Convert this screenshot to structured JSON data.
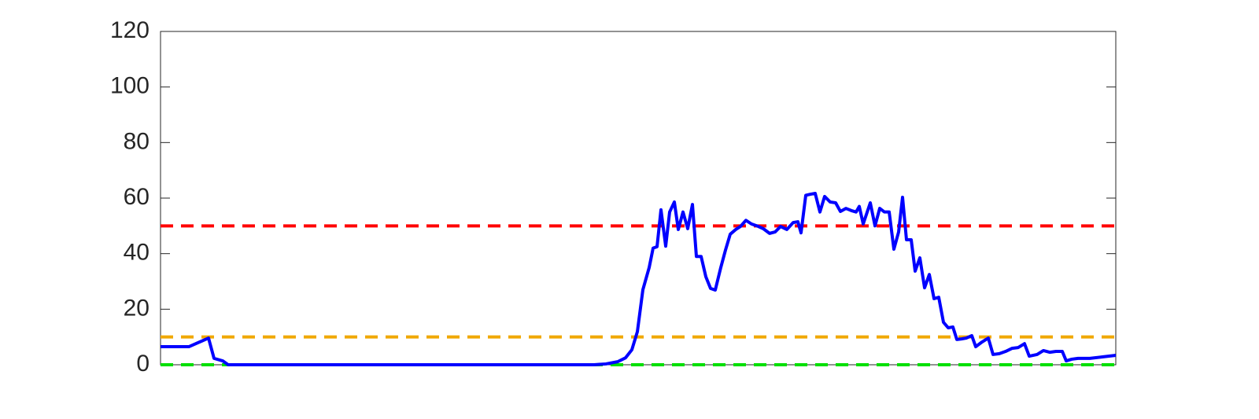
{
  "chart_data": {
    "type": "line",
    "x": [
      0,
      36,
      61,
      68,
      79,
      86,
      551,
      566,
      581,
      591,
      599,
      606,
      613,
      621,
      626,
      631,
      636,
      642,
      647,
      653,
      658,
      664,
      670,
      676,
      681,
      687,
      693,
      699,
      705,
      712,
      718,
      724,
      731,
      737,
      744,
      751,
      758,
      766,
      774,
      781,
      788,
      796,
      804,
      810,
      814,
      820,
      826,
      832,
      838,
      844,
      851,
      858,
      864,
      871,
      878,
      884,
      888,
      893,
      902,
      908,
      914,
      920,
      926,
      932,
      938,
      943,
      948,
      954,
      959,
      965,
      971,
      977,
      983,
      989,
      995,
      1001,
      1007,
      1012,
      1018,
      1024,
      1031,
      1036,
      1044,
      1052,
      1058,
      1066,
      1074,
      1082,
      1090,
      1098,
      1104,
      1114,
      1122,
      1130,
      1138,
      1146,
      1151,
      1158,
      1166,
      1181,
      1196,
      1214
    ],
    "series": [
      {
        "color": "#0000ff",
        "values": [
          6.5,
          6.5,
          9.6,
          2.3,
          1.4,
          0,
          0,
          0.3,
          1.1,
          2.5,
          5.4,
          11.9,
          27,
          35,
          42,
          42.5,
          55.8,
          42.7,
          55,
          58.6,
          48.7,
          55,
          49,
          57.7,
          39,
          39,
          31.7,
          27.5,
          26.9,
          35,
          41.3,
          47,
          48.7,
          49.8,
          52,
          50.7,
          50,
          49,
          47.3,
          47.8,
          49.8,
          48.7,
          51.2,
          51.5,
          47.5,
          61,
          61.4,
          61.7,
          55,
          60.6,
          58.6,
          58.3,
          55.2,
          56.3,
          55.5,
          55,
          57,
          50.7,
          58.3,
          50,
          56.3,
          55,
          55,
          41.6,
          47.8,
          60.3,
          45,
          45,
          33.7,
          38.5,
          27.7,
          32.5,
          23.8,
          24.3,
          15.3,
          13.3,
          13.6,
          9.1,
          9.3,
          9.6,
          10.5,
          6.5,
          8.2,
          9.6,
          3.7,
          4,
          4.8,
          5.9,
          6.2,
          7.6,
          3.1,
          3.7,
          5.1,
          4.5,
          4.8,
          4.8,
          1.4,
          2,
          2.3,
          2.3,
          2.8,
          3.4
        ]
      }
    ],
    "reference_lines": [
      {
        "value": 50,
        "color": "#ff0000"
      },
      {
        "value": 10,
        "color": "#f0a800"
      },
      {
        "value": 0,
        "color": "#00e000"
      }
    ],
    "xlim": [
      0,
      1214
    ],
    "ylim": [
      0,
      120
    ],
    "yticks": [
      0,
      20,
      40,
      60,
      80,
      100,
      120
    ]
  }
}
